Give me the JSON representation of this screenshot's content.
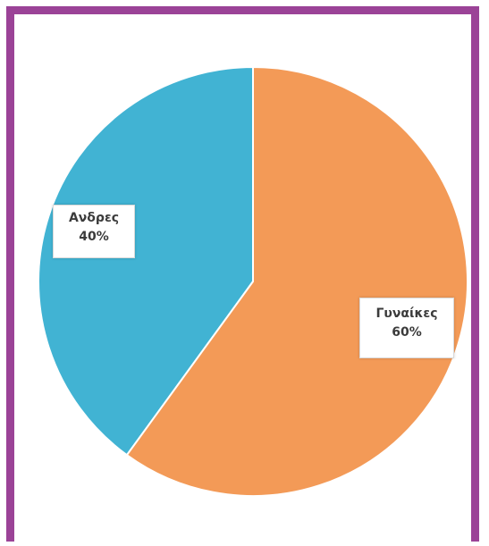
{
  "chart_data": {
    "type": "pie",
    "slices": [
      {
        "label": "Ανδρες",
        "value": 40,
        "value_label": "40%",
        "color": "#41b3d3"
      },
      {
        "label": "Γυναίκες",
        "value": 60,
        "value_label": "60%",
        "color": "#f39a57"
      }
    ]
  }
}
